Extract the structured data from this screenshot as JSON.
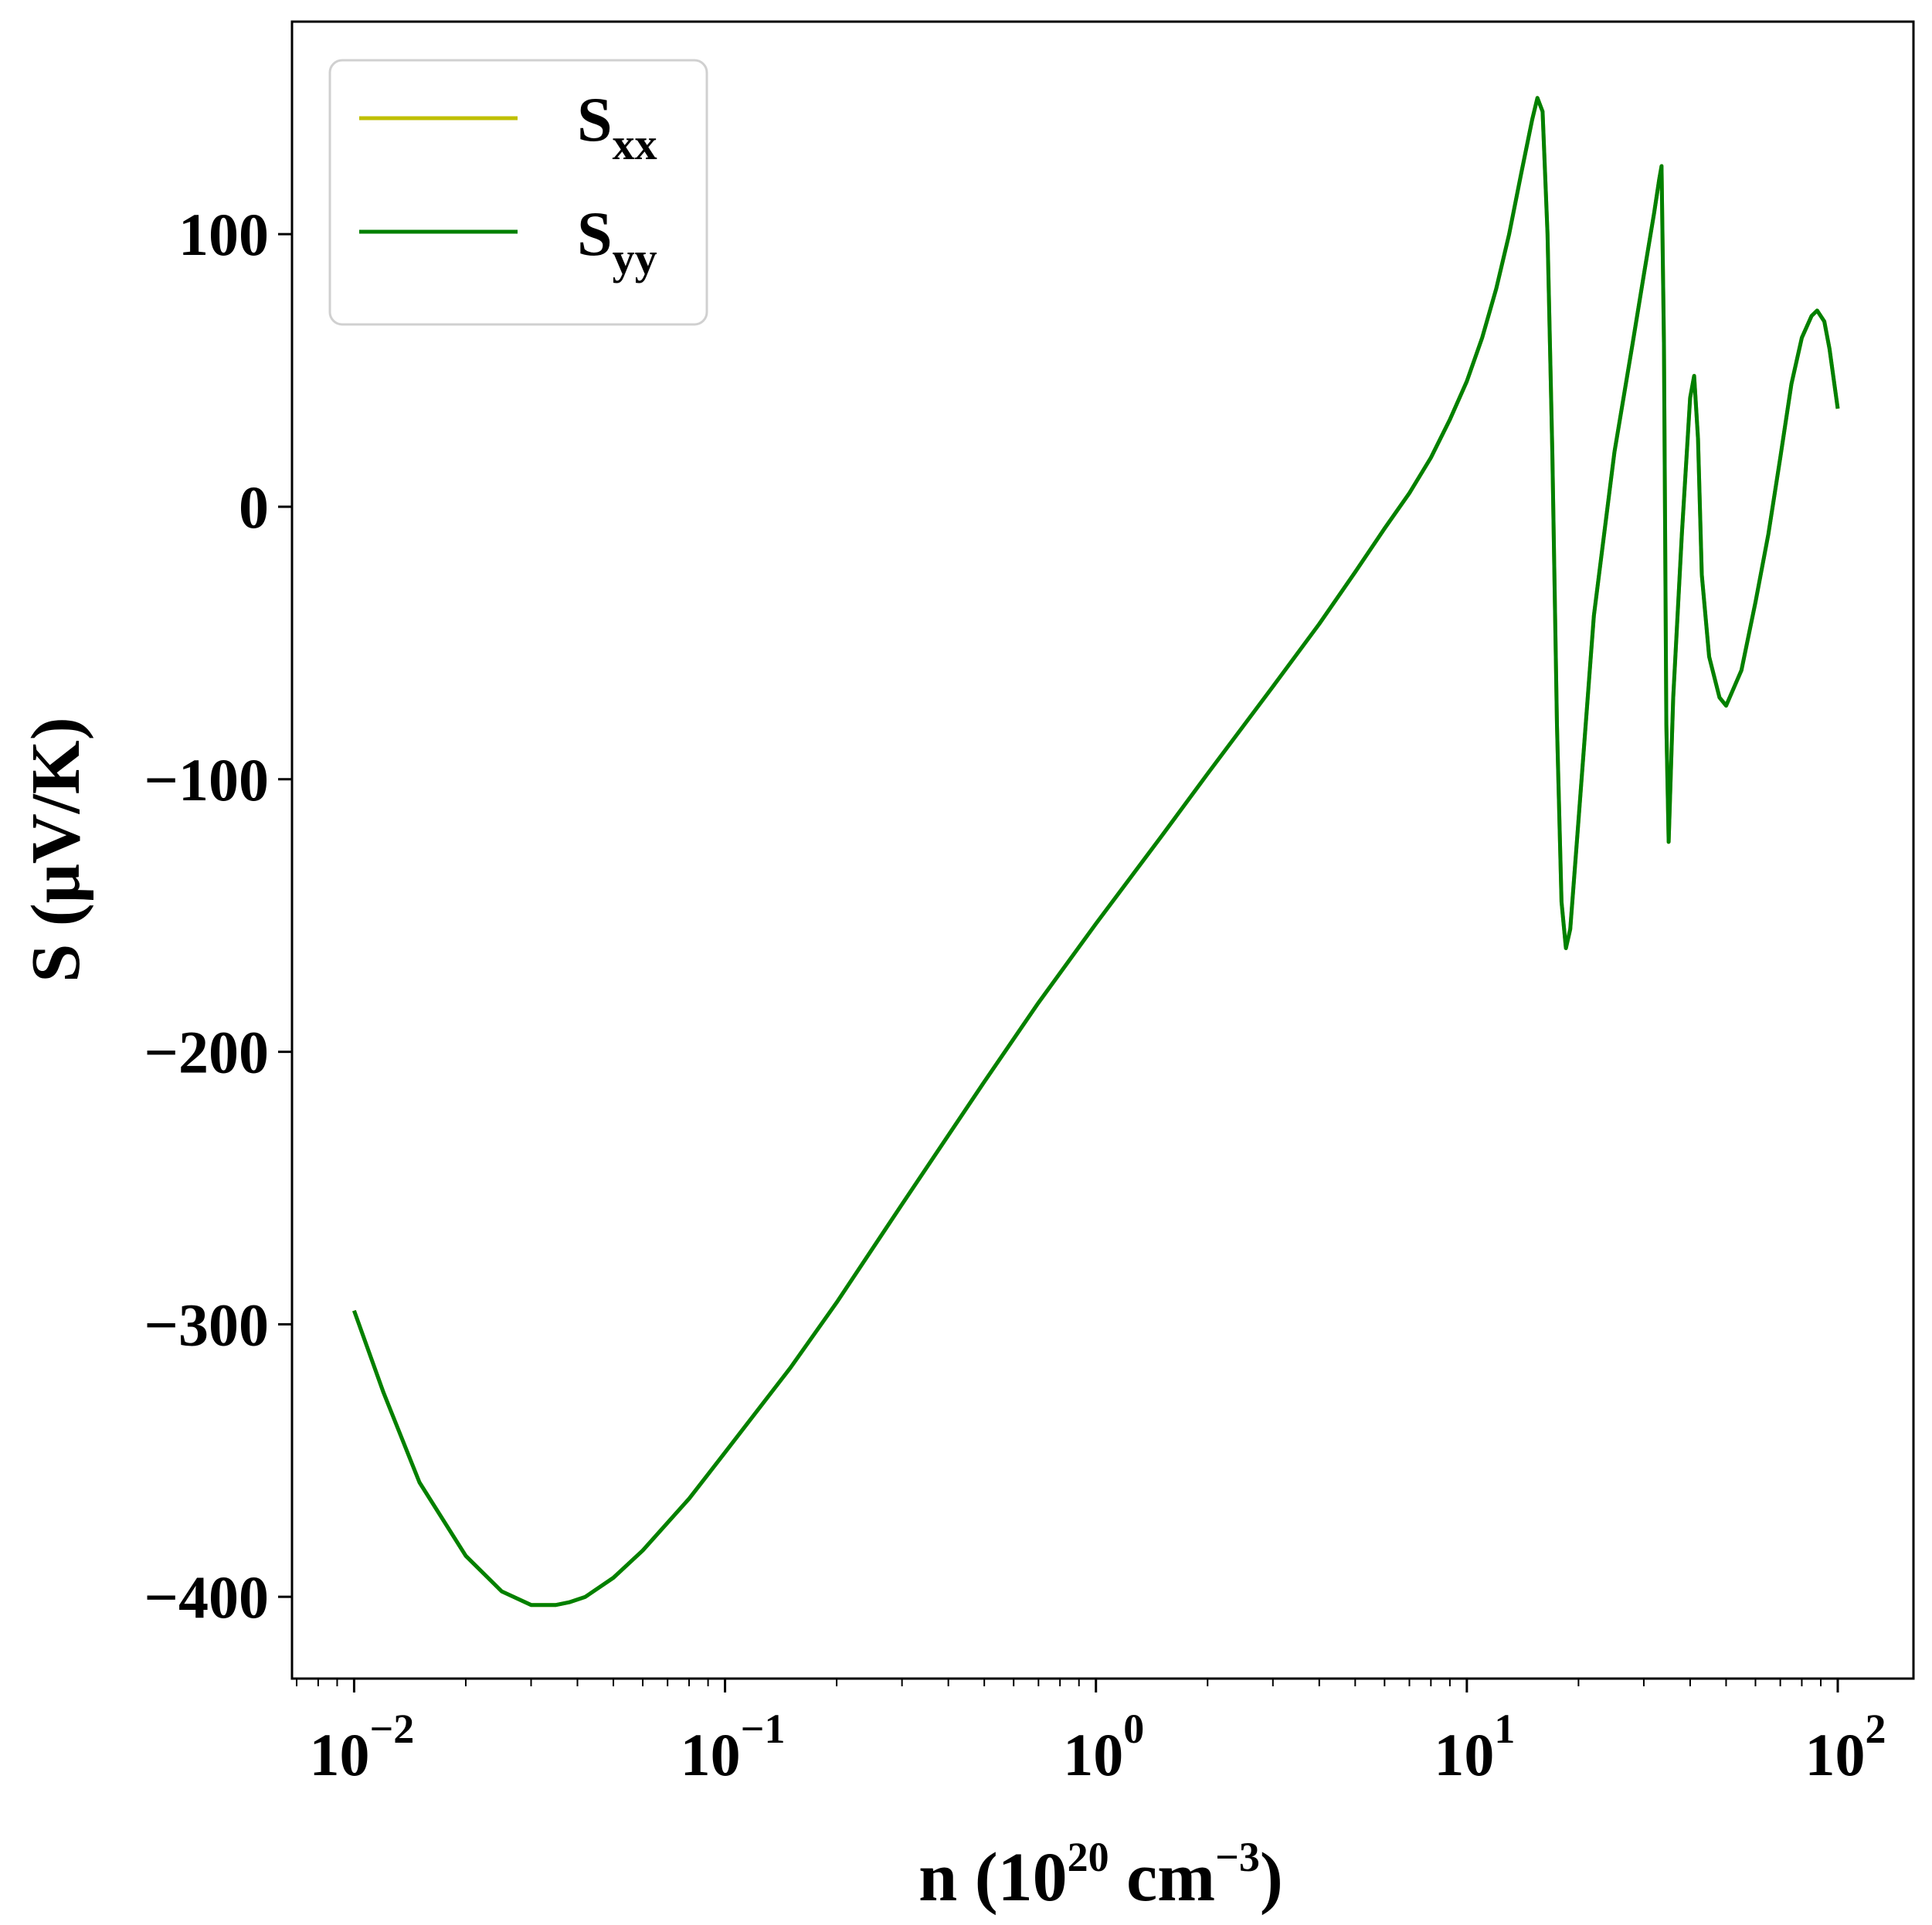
{
  "chart_data": {
    "type": "line",
    "xscale": "log",
    "xlim": [
      0.0068,
      160
    ],
    "ylim": [
      -430,
      178
    ],
    "xlabel": {
      "prefix": "n (10",
      "exp1": "20",
      "middle": " cm",
      "exp2": "−3",
      "suffix": ")"
    },
    "ylabel": "S (μV/K)",
    "x_ticks": [
      {
        "value": 0.01,
        "base": "10",
        "exp": "−2"
      },
      {
        "value": 0.1,
        "base": "10",
        "exp": "−1"
      },
      {
        "value": 1,
        "base": "10",
        "exp": "0"
      },
      {
        "value": 10,
        "base": "10",
        "exp": "1"
      },
      {
        "value": 100,
        "base": "10",
        "exp": "2"
      }
    ],
    "y_ticks": [
      {
        "value": 100,
        "label": "100"
      },
      {
        "value": 0,
        "label": "0"
      },
      {
        "value": -100,
        "label": "−100"
      },
      {
        "value": -200,
        "label": "−200"
      },
      {
        "value": -300,
        "label": "−300"
      },
      {
        "value": -400,
        "label": "−400"
      }
    ],
    "grid": false,
    "legend_position": "top-left",
    "series": [
      {
        "name": "S",
        "sub": "xx",
        "color": "#bfbf00",
        "x": [
          0.01,
          0.012,
          0.015,
          0.02,
          0.025,
          0.03,
          0.035,
          0.038,
          0.042,
          0.05,
          0.06,
          0.08,
          0.1,
          0.15,
          0.2,
          0.3,
          0.5,
          0.7,
          1,
          1.5,
          2,
          3,
          4,
          5,
          6,
          7,
          8,
          9,
          10,
          11,
          12,
          13,
          14,
          15,
          15.5,
          16,
          16.5,
          17,
          17.5,
          18,
          18.5,
          19,
          20,
          22,
          25,
          28,
          30,
          32,
          33,
          33.5,
          34,
          34.5,
          35,
          36,
          38,
          40,
          41,
          42,
          43,
          45,
          48,
          50,
          55,
          60,
          65,
          70,
          75,
          80,
          85,
          88,
          92,
          95,
          100
        ],
        "y": [
          -295,
          -325,
          -358,
          -385,
          -398,
          -403,
          -403,
          -402,
          -400,
          -393,
          -383,
          -364,
          -347,
          -316,
          -292,
          -256,
          -211,
          -182,
          -153,
          -121,
          -98,
          -66,
          -43,
          -24,
          -8,
          5,
          18,
          32,
          46,
          62,
          80,
          100,
          122,
          142,
          150,
          145,
          100,
          20,
          -80,
          -145,
          -162,
          -155,
          -115,
          -40,
          20,
          60,
          85,
          108,
          120,
          125,
          60,
          -80,
          -123,
          -70,
          -10,
          40,
          48,
          25,
          -25,
          -55,
          -70,
          -73,
          -60,
          -35,
          -10,
          18,
          45,
          62,
          70,
          72,
          68,
          58,
          36
        ]
      },
      {
        "name": "S",
        "sub": "yy",
        "color": "#008000",
        "x": [
          0.01,
          0.012,
          0.015,
          0.02,
          0.025,
          0.03,
          0.035,
          0.038,
          0.042,
          0.05,
          0.06,
          0.08,
          0.1,
          0.15,
          0.2,
          0.3,
          0.5,
          0.7,
          1,
          1.5,
          2,
          3,
          4,
          5,
          6,
          7,
          8,
          9,
          10,
          11,
          12,
          13,
          14,
          15,
          15.5,
          16,
          16.5,
          17,
          17.5,
          18,
          18.5,
          19,
          20,
          22,
          25,
          28,
          30,
          32,
          33,
          33.5,
          34,
          34.5,
          35,
          36,
          38,
          40,
          41,
          42,
          43,
          45,
          48,
          50,
          55,
          60,
          65,
          70,
          75,
          80,
          85,
          88,
          92,
          95,
          100
        ],
        "y": [
          -295,
          -325,
          -358,
          -385,
          -398,
          -403,
          -403,
          -402,
          -400,
          -393,
          -383,
          -364,
          -347,
          -316,
          -292,
          -256,
          -211,
          -182,
          -153,
          -121,
          -98,
          -66,
          -43,
          -24,
          -8,
          5,
          18,
          32,
          46,
          62,
          80,
          100,
          122,
          142,
          150,
          145,
          100,
          20,
          -80,
          -145,
          -162,
          -155,
          -115,
          -40,
          20,
          60,
          85,
          108,
          120,
          125,
          60,
          -80,
          -123,
          -70,
          -10,
          40,
          48,
          25,
          -25,
          -55,
          -70,
          -73,
          -60,
          -35,
          -10,
          18,
          45,
          62,
          70,
          72,
          68,
          58,
          36
        ]
      }
    ]
  }
}
